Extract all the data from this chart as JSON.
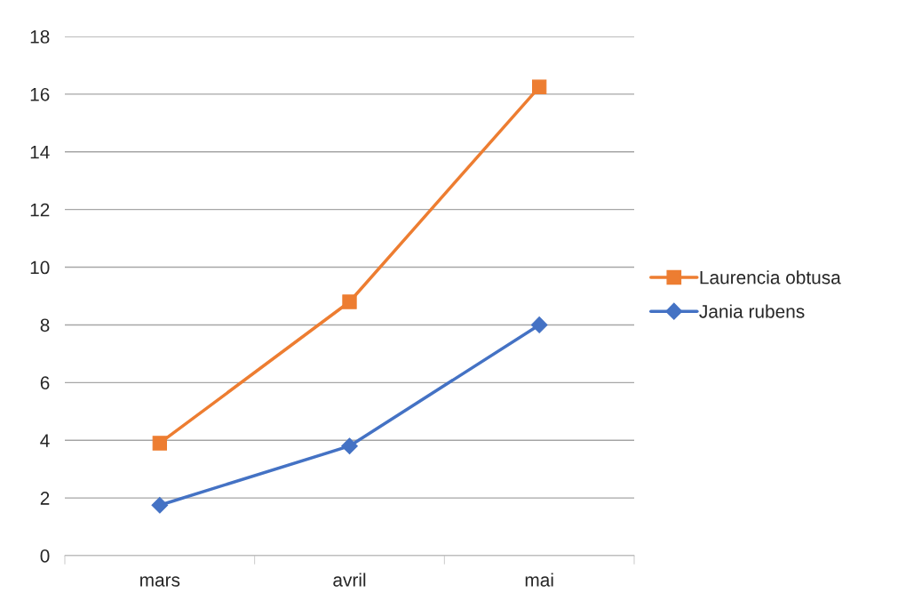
{
  "chart_data": {
    "type": "line",
    "categories": [
      "mars",
      "avril",
      "mai"
    ],
    "series": [
      {
        "name": "Laurencia obtusa",
        "color": "#ed7d31",
        "marker": "square",
        "values": [
          3.9,
          8.8,
          16.25
        ]
      },
      {
        "name": "Jania rubens",
        "color": "#4472c4",
        "marker": "diamond",
        "values": [
          1.75,
          3.8,
          8.0
        ]
      }
    ],
    "ylim": [
      0,
      18
    ],
    "yticks": [
      0,
      2,
      4,
      6,
      8,
      10,
      12,
      14,
      16,
      18
    ],
    "grid": "y",
    "legend": "right",
    "line_style": "solid"
  }
}
